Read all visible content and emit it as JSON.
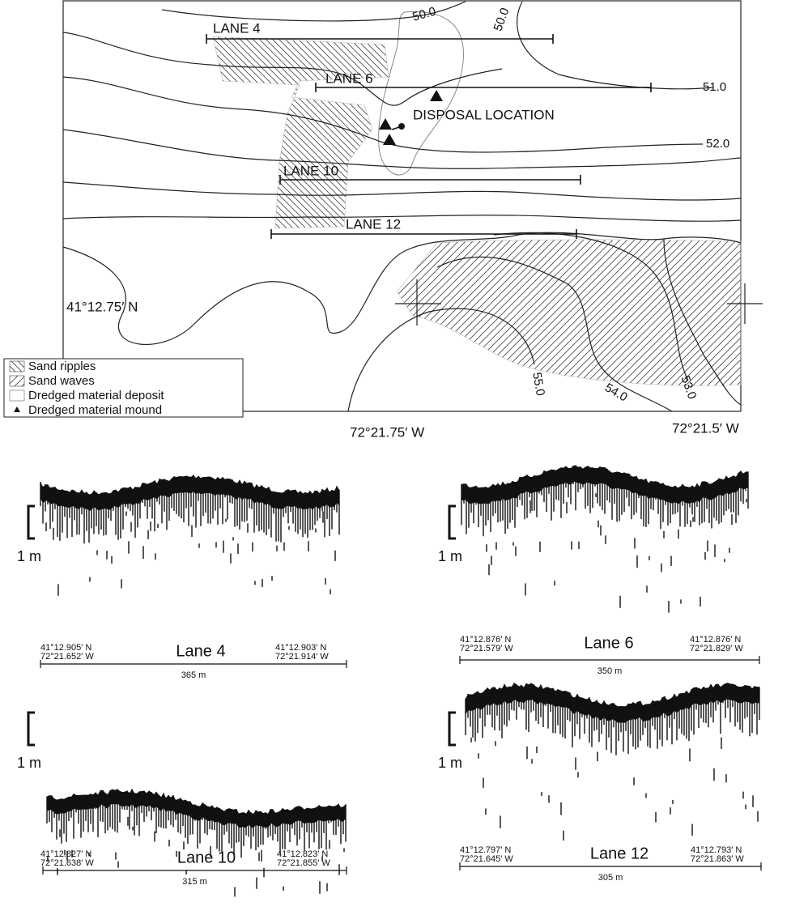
{
  "map": {
    "contour_labels": [
      "50.0",
      "50.0",
      "51.0",
      "52.0",
      "53.0",
      "54.0",
      "55.0"
    ],
    "lanes": [
      "LANE 4",
      "LANE 6",
      "LANE 10",
      "LANE 12"
    ],
    "disposal_label": "DISPOSAL LOCATION",
    "latitude_label": "41°12.75′ N",
    "longitude_labels": [
      "72°21.75′ W",
      "72°21.5′ W"
    ]
  },
  "legend": [
    "Sand ripples",
    "Sand waves",
    "Dredged material deposit",
    "Dredged material mound"
  ],
  "profiles": [
    {
      "title": "Lane 4",
      "scale": "1 m",
      "left": [
        "41°12.905′ N",
        "72°21.652′ W"
      ],
      "right": [
        "41°12.903′ N",
        "72°21.914′ W"
      ],
      "distance": "365 m"
    },
    {
      "title": "Lane 6",
      "scale": "1 m",
      "left": [
        "41°12.876′ N",
        "72°21.579′ W"
      ],
      "right": [
        "41°12.876′ N",
        "72°21.829′ W"
      ],
      "distance": "350 m"
    },
    {
      "title": "Lane 10",
      "scale": "1 m",
      "left": [
        "41°12.827′ N",
        "72°21.638′ W"
      ],
      "right": [
        "41°12.823′ N",
        "72°21.855′ W"
      ],
      "distance": "315 m"
    },
    {
      "title": "Lane 12",
      "scale": "1 m",
      "left": [
        "41°12.797′ N",
        "72°21.645′ W"
      ],
      "right": [
        "41°12.793′ N",
        "72°21.863′ W"
      ],
      "distance": "305 m"
    }
  ]
}
